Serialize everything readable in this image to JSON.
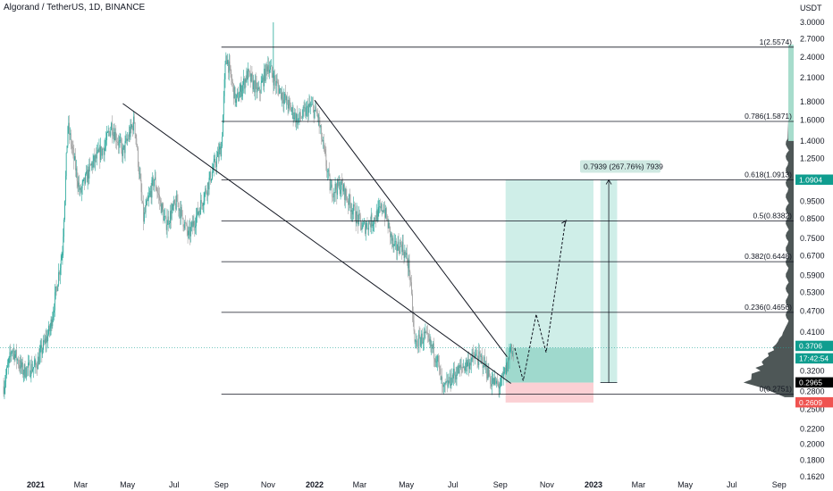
{
  "header": {
    "title": "Algorand / TetherUS, 1D, BINANCE"
  },
  "chart_data": {
    "type": "candlestick",
    "symbol": "Algorand / TetherUS",
    "interval": "1D",
    "exchange": "BINANCE",
    "currency_label": "USDT",
    "y_scale": "log",
    "ylim": [
      0.16,
      3.1
    ],
    "y_ticks": [
      "3.0000",
      "2.7000",
      "2.4000",
      "2.1000",
      "1.8000",
      "1.6000",
      "1.4000",
      "1.2500",
      "1.1000",
      "0.9500",
      "0.8500",
      "0.7500",
      "0.6700",
      "0.5900",
      "0.5300",
      "0.4700",
      "0.4100",
      "0.3700",
      "0.3200",
      "0.2800",
      "0.2500",
      "0.2200",
      "0.2000",
      "0.1800",
      "0.1620"
    ],
    "x_ticks": [
      {
        "label": "2021",
        "date": "2021-01-01",
        "bold": true
      },
      {
        "label": "Mar",
        "date": "2021-03-01"
      },
      {
        "label": "May",
        "date": "2021-05-01"
      },
      {
        "label": "Jul",
        "date": "2021-07-01"
      },
      {
        "label": "Sep",
        "date": "2021-09-01"
      },
      {
        "label": "Nov",
        "date": "2021-11-01"
      },
      {
        "label": "2022",
        "date": "2022-01-01",
        "bold": true
      },
      {
        "label": "Mar",
        "date": "2022-03-01"
      },
      {
        "label": "May",
        "date": "2022-05-01"
      },
      {
        "label": "Jul",
        "date": "2022-07-01"
      },
      {
        "label": "Sep",
        "date": "2022-09-01"
      },
      {
        "label": "Nov",
        "date": "2022-11-01"
      },
      {
        "label": "2023",
        "date": "2023-01-01",
        "bold": true
      },
      {
        "label": "Mar",
        "date": "2023-03-01"
      },
      {
        "label": "May",
        "date": "2023-05-01"
      },
      {
        "label": "Jul",
        "date": "2023-07-01"
      },
      {
        "label": "Sep",
        "date": "2023-09-01"
      }
    ],
    "price_path": [
      [
        "2020-11-20",
        0.29
      ],
      [
        "2020-12-01",
        0.37
      ],
      [
        "2020-12-15",
        0.32
      ],
      [
        "2021-01-01",
        0.33
      ],
      [
        "2021-01-20",
        0.42
      ],
      [
        "2021-02-05",
        0.7
      ],
      [
        "2021-02-12",
        1.55
      ],
      [
        "2021-02-28",
        1.0
      ],
      [
        "2021-03-15",
        1.2
      ],
      [
        "2021-04-01",
        1.35
      ],
      [
        "2021-04-10",
        1.55
      ],
      [
        "2021-04-25",
        1.3
      ],
      [
        "2021-05-10",
        1.6
      ],
      [
        "2021-05-22",
        0.85
      ],
      [
        "2021-06-05",
        1.1
      ],
      [
        "2021-06-20",
        0.82
      ],
      [
        "2021-07-05",
        0.95
      ],
      [
        "2021-07-20",
        0.76
      ],
      [
        "2021-08-05",
        0.93
      ],
      [
        "2021-08-22",
        1.18
      ],
      [
        "2021-09-01",
        1.35
      ],
      [
        "2021-09-07",
        2.45
      ],
      [
        "2021-09-20",
        1.8
      ],
      [
        "2021-10-05",
        2.15
      ],
      [
        "2021-10-20",
        1.9
      ],
      [
        "2021-11-01",
        2.3
      ],
      [
        "2021-11-10",
        2.05
      ],
      [
        "2021-11-25",
        1.8
      ],
      [
        "2021-12-10",
        1.6
      ],
      [
        "2021-12-27",
        1.75
      ],
      [
        "2022-01-05",
        1.65
      ],
      [
        "2022-01-22",
        1.02
      ],
      [
        "2022-02-05",
        1.05
      ],
      [
        "2022-02-20",
        0.9
      ],
      [
        "2022-03-05",
        0.8
      ],
      [
        "2022-03-20",
        0.85
      ],
      [
        "2022-04-01",
        0.92
      ],
      [
        "2022-04-15",
        0.7
      ],
      [
        "2022-04-25",
        0.72
      ],
      [
        "2022-05-05",
        0.62
      ],
      [
        "2022-05-12",
        0.38
      ],
      [
        "2022-05-25",
        0.4
      ],
      [
        "2022-06-10",
        0.35
      ],
      [
        "2022-06-18",
        0.28
      ],
      [
        "2022-07-01",
        0.31
      ],
      [
        "2022-07-15",
        0.33
      ],
      [
        "2022-07-30",
        0.35
      ],
      [
        "2022-08-10",
        0.34
      ],
      [
        "2022-08-20",
        0.3
      ],
      [
        "2022-09-01",
        0.29
      ],
      [
        "2022-09-10",
        0.33
      ],
      [
        "2022-09-15",
        0.38
      ],
      [
        "2022-09-18",
        0.35
      ]
    ],
    "fib_levels": [
      {
        "label": "1(2.5574)",
        "value": 2.5574
      },
      {
        "label": "0.786(1.5871)",
        "value": 1.5871
      },
      {
        "label": "0.618(1.0913)",
        "value": 1.0913
      },
      {
        "label": "0.5(0.8382)",
        "value": 0.8382
      },
      {
        "label": "0.382(0.6448)",
        "value": 0.6448
      },
      {
        "label": "0.236(0.4656)",
        "value": 0.4656
      },
      {
        "label": "0(0.2751)",
        "value": 0.2751
      }
    ],
    "fib_start_date": "2021-09-01",
    "trendlines": [
      {
        "from": [
          "2021-04-25",
          1.78
        ],
        "to": [
          "2022-09-15",
          0.295
        ]
      },
      {
        "from": [
          "2022-01-01",
          1.82
        ],
        "to": [
          "2022-09-10",
          0.35
        ]
      }
    ],
    "projection_path": [
      [
        "2022-09-20",
        0.37
      ],
      [
        "2022-10-01",
        0.3
      ],
      [
        "2022-10-18",
        0.46
      ],
      [
        "2022-10-31",
        0.36
      ],
      [
        "2022-11-25",
        0.83
      ]
    ],
    "position": {
      "start_date": "2022-09-08",
      "end_date": "2023-01-01",
      "entry": 0.2965,
      "target": 1.0904,
      "stop": 0.2609,
      "label": "0.7939 (267.76%) 7939"
    },
    "measure": {
      "start_date": "2023-01-10",
      "end_date": "2023-02-01",
      "low": 0.2965,
      "high": 1.0904
    },
    "price_tags": [
      {
        "text": "1.0904",
        "value": 1.0904,
        "color": "#0f9d8f"
      },
      {
        "text": "0.3706",
        "value": 0.3706,
        "color": "#0f9d8f"
      },
      {
        "text": "17:42:54",
        "value": 0.3706,
        "color": "#0f9d8f",
        "sub": true
      },
      {
        "text": "0.2965",
        "value": 0.2965,
        "color": "#000000"
      },
      {
        "text": "0.2609",
        "value": 0.2609,
        "color": "#ef5350"
      }
    ],
    "current_price": 0.3706,
    "grid": false,
    "colors": {
      "up": "#26a69a",
      "down": "#9e9e9e",
      "fib_line": "#131722",
      "target_zone": "#cfeee8",
      "stop_zone": "#fbd0d4",
      "profile": "#2f3a3a"
    }
  }
}
